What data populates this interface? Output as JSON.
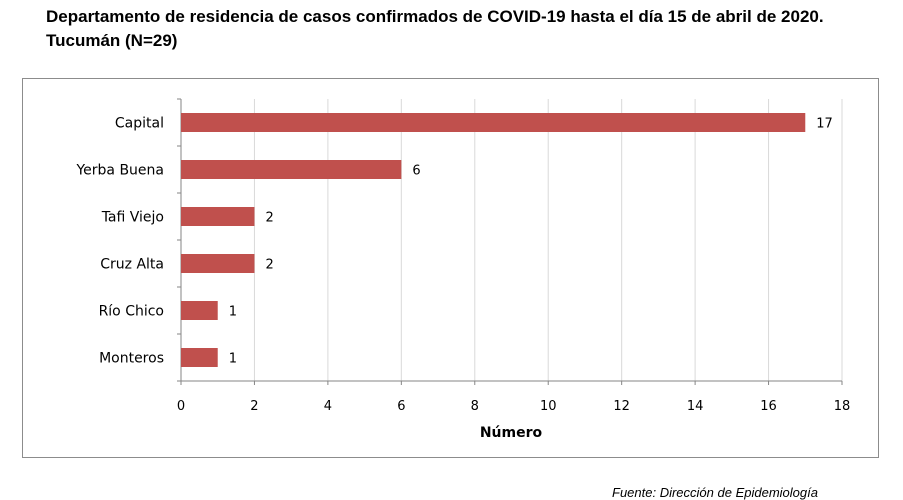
{
  "title": "Departamento de residencia de casos confirmados de COVID-19 hasta el día 15 de abril de 2020. Tucumán (N=29)",
  "source": "Fuente: Dirección de Epidemiología",
  "chart_data": {
    "type": "bar",
    "orientation": "horizontal",
    "title": "Departamento de residencia de casos confirmados de COVID-19 hasta el día 15 de abril de 2020. Tucumán (N=29)",
    "categories": [
      "Capital",
      "Yerba Buena",
      "Tafi Viejo",
      "Cruz Alta",
      "Río Chico",
      "Monteros"
    ],
    "values": [
      17,
      6,
      2,
      2,
      1,
      1
    ],
    "xlabel": "Número",
    "ylabel": "",
    "xlim": [
      0,
      18
    ],
    "xticks": [
      0,
      2,
      4,
      6,
      8,
      10,
      12,
      14,
      16,
      18
    ],
    "grid": true,
    "data_labels": true,
    "bar_color": "#c0504d",
    "grid_color": "#d9d9d9"
  }
}
